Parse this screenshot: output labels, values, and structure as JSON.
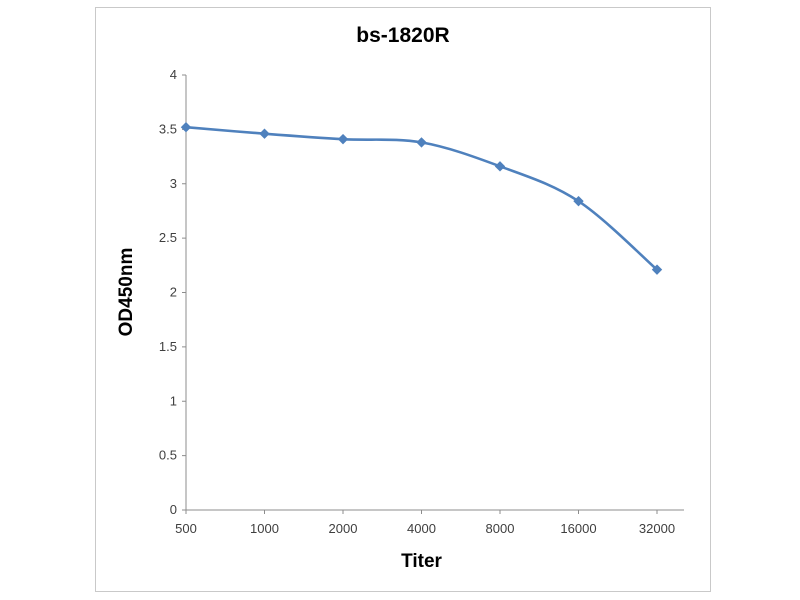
{
  "chart_data": {
    "type": "line",
    "title": "bs-1820R",
    "xlabel": "Titer",
    "ylabel": "OD450nm",
    "categories": [
      "500",
      "1000",
      "2000",
      "4000",
      "8000",
      "16000",
      "32000"
    ],
    "series": [
      {
        "name": "bs-1820R",
        "values": [
          3.52,
          3.46,
          3.41,
          3.38,
          3.16,
          2.84,
          2.21
        ],
        "color": "#4f81bd",
        "marker": "diamond",
        "line_style": "smooth"
      }
    ],
    "ylim": [
      0,
      4
    ],
    "y_ticks": [
      0,
      0.5,
      1,
      1.5,
      2,
      2.5,
      3,
      3.5,
      4
    ],
    "y_tick_labels": [
      "0",
      "0.5",
      "1",
      "1.5",
      "2",
      "2.5",
      "3",
      "3.5",
      "4"
    ],
    "grid": "off",
    "legend": "none",
    "axis_color": "#8c8c8c",
    "tick_label_color": "#3f3f3f",
    "background_color": "#ffffff",
    "frame_border_color": "#c9c9c9"
  }
}
